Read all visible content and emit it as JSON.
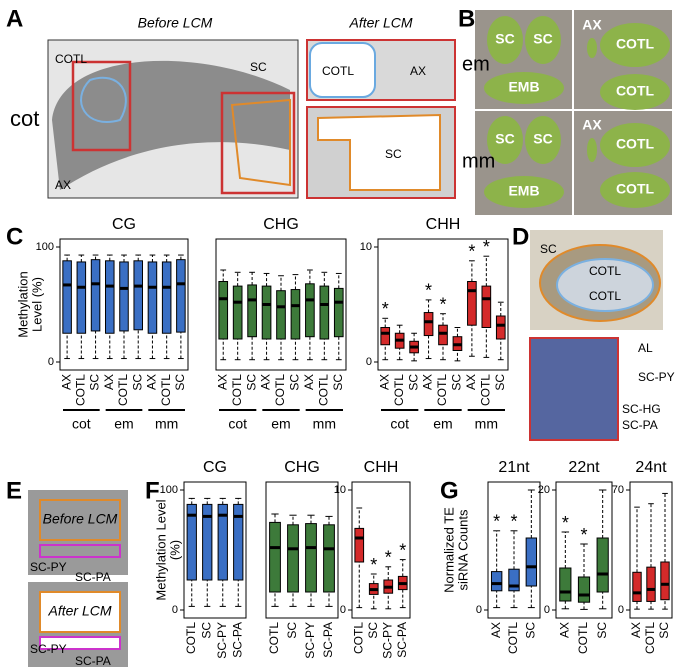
{
  "panel_letters": [
    "A",
    "B",
    "C",
    "D",
    "E",
    "F",
    "G"
  ],
  "panel_a": {
    "before_title": "Before LCM",
    "after_title": "After LCM",
    "row_label": "cot",
    "labels": [
      "COTL",
      "AX",
      "SC",
      "COTL",
      "AX",
      "SC"
    ]
  },
  "panel_b": {
    "rows": [
      "em",
      "mm"
    ],
    "labels": [
      "SC",
      "SC",
      "AX",
      "COTL",
      "EMB",
      "COTL",
      "SC",
      "SC",
      "AX",
      "COTL",
      "EMB",
      "COTL"
    ]
  },
  "panel_d": {
    "labels": [
      "SC",
      "COTL",
      "COTL",
      "AL",
      "SC-PY",
      "SC-HG",
      "SC-PA"
    ]
  },
  "panel_e": {
    "titles": [
      "Before LCM",
      "After LCM"
    ],
    "labels": [
      "SC-PY",
      "SC-PA",
      "SC-PY",
      "SC-PA"
    ]
  },
  "chart_data": [
    {
      "type": "box",
      "title": "CG",
      "ylabel": [
        "Methylation",
        "Level (%)"
      ],
      "color": "#3a6fc4",
      "categories": [
        "AX",
        "COTL",
        "SC",
        "AX",
        "COTL",
        "SC",
        "AX",
        "COTL",
        "SC"
      ],
      "groups": [
        "cot",
        "em",
        "mm"
      ],
      "ylim": [
        0,
        100
      ],
      "yticks": [
        0,
        100
      ],
      "whisker_low": [
        3,
        3,
        3,
        3,
        3,
        3,
        3,
        3,
        3
      ],
      "q1": [
        25,
        25,
        27,
        25,
        27,
        28,
        25,
        25,
        26
      ],
      "median": [
        67,
        65,
        68,
        66,
        64,
        66,
        65,
        65,
        68
      ],
      "q3": [
        88,
        87,
        89,
        88,
        87,
        88,
        87,
        87,
        89
      ],
      "whisker_high": [
        93,
        93,
        93,
        93,
        93,
        93,
        93,
        93,
        93
      ],
      "significance": [
        null,
        null,
        null,
        null,
        null,
        null,
        null,
        null,
        null
      ]
    },
    {
      "type": "box",
      "title": "CHG",
      "color": "#3d7a3a",
      "categories": [
        "AX",
        "COTL",
        "SC",
        "AX",
        "COTL",
        "SC",
        "AX",
        "COTL",
        "SC"
      ],
      "groups": [
        "cot",
        "em",
        "mm"
      ],
      "ylim": [
        0,
        100
      ],
      "whisker_low": [
        2,
        2,
        2,
        2,
        2,
        2,
        2,
        2,
        2
      ],
      "q1": [
        20,
        20,
        22,
        20,
        20,
        20,
        22,
        20,
        22
      ],
      "median": [
        55,
        52,
        54,
        50,
        48,
        49,
        54,
        50,
        52
      ],
      "q3": [
        70,
        66,
        67,
        66,
        62,
        63,
        68,
        66,
        64
      ],
      "whisker_high": [
        80,
        78,
        78,
        77,
        75,
        76,
        80,
        78,
        77
      ],
      "significance": [
        null,
        null,
        null,
        null,
        null,
        null,
        null,
        null,
        null
      ]
    },
    {
      "type": "box",
      "title": "CHH",
      "color": "#d42a2a",
      "categories": [
        "AX",
        "COTL",
        "SC",
        "AX",
        "COTL",
        "SC",
        "AX",
        "COTL",
        "SC"
      ],
      "groups": [
        "cot",
        "em",
        "mm"
      ],
      "ylim": [
        0,
        10
      ],
      "yticks": [
        0,
        10
      ],
      "whisker_low": [
        0.2,
        0.2,
        0.1,
        0.3,
        0.2,
        0.1,
        0.5,
        0.4,
        0.2
      ],
      "q1": [
        1.5,
        1.2,
        0.8,
        2.3,
        1.5,
        1.0,
        3.2,
        3.0,
        2.0
      ],
      "median": [
        2.5,
        1.9,
        1.3,
        3.5,
        2.5,
        1.5,
        6.2,
        5.5,
        3.2
      ],
      "q3": [
        3.0,
        2.5,
        1.8,
        4.3,
        3.2,
        2.2,
        7.0,
        6.6,
        4.0
      ],
      "whisker_high": [
        3.8,
        3.2,
        2.5,
        5.4,
        4.2,
        3.0,
        8.8,
        9.2,
        5.2
      ],
      "significance": [
        "*",
        null,
        null,
        "*",
        "*",
        null,
        "*",
        "*",
        null
      ]
    },
    {
      "type": "box",
      "title": "CG",
      "ylabel": [
        "Methylation Level",
        "(%)"
      ],
      "color": "#3a6fc4",
      "categories": [
        "COTL",
        "SC",
        "SC-PY",
        "SC-PA"
      ],
      "ylim": [
        0,
        100
      ],
      "yticks": [
        0,
        100
      ],
      "whisker_low": [
        3,
        3,
        3,
        3
      ],
      "q1": [
        25,
        25,
        25,
        25
      ],
      "median": [
        79,
        78,
        79,
        78
      ],
      "q3": [
        88,
        88,
        88,
        88
      ],
      "whisker_high": [
        93,
        93,
        93,
        93
      ],
      "significance": [
        null,
        null,
        null,
        null
      ]
    },
    {
      "type": "box",
      "title": "CHG",
      "color": "#3d7a3a",
      "categories": [
        "COTL",
        "SC",
        "SC-PY",
        "SC-PA"
      ],
      "ylim": [
        0,
        100
      ],
      "whisker_low": [
        3,
        3,
        3,
        3
      ],
      "q1": [
        15,
        15,
        15,
        15
      ],
      "median": [
        52,
        51,
        52,
        51
      ],
      "q3": [
        73,
        71,
        72,
        71
      ],
      "whisker_high": [
        80,
        79,
        79,
        78
      ],
      "significance": [
        null,
        null,
        null,
        null
      ]
    },
    {
      "type": "box",
      "title": "CHH",
      "color": "#d42a2a",
      "categories": [
        "COTL",
        "SC",
        "SC-PY",
        "SC-PA"
      ],
      "ylim": [
        0,
        10
      ],
      "yticks": [
        0,
        10
      ],
      "whisker_low": [
        0.2,
        0.1,
        0.1,
        0.2
      ],
      "q1": [
        4.0,
        1.3,
        1.4,
        1.7
      ],
      "median": [
        6.0,
        1.7,
        1.9,
        2.2
      ],
      "q3": [
        6.8,
        2.2,
        2.5,
        2.8
      ],
      "whisker_high": [
        8.5,
        3.0,
        3.6,
        4.2
      ],
      "significance": [
        null,
        "*",
        "*",
        "*"
      ]
    },
    {
      "type": "box",
      "title": "21nt",
      "ylabel": [
        "Normalized TE",
        "siRNA Counts"
      ],
      "color": "#3a6fc4",
      "categories": [
        "AX",
        "COTL",
        "SC"
      ],
      "ylim": [
        0,
        5
      ],
      "yticks": [
        0
      ],
      "whisker_low": [
        0.1,
        0.1,
        0.1
      ],
      "q1": [
        0.8,
        0.8,
        1.0
      ],
      "median": [
        1.1,
        1.0,
        1.8
      ],
      "q3": [
        1.6,
        1.7,
        3.0
      ],
      "whisker_high": [
        3.3,
        3.3,
        5.0
      ],
      "significance": [
        "*",
        "*",
        null
      ]
    },
    {
      "type": "box",
      "title": "22nt",
      "color": "#3d7a3a",
      "categories": [
        "AX",
        "COTL",
        "SC"
      ],
      "ylim": [
        0,
        20
      ],
      "yticks": [
        0,
        20
      ],
      "whisker_low": [
        0.2,
        0.1,
        0.2
      ],
      "q1": [
        1.5,
        1.3,
        3
      ],
      "median": [
        3,
        2.5,
        6
      ],
      "q3": [
        7,
        5.5,
        12
      ],
      "whisker_high": [
        13,
        11,
        20
      ],
      "significance": [
        "*",
        "*",
        null
      ]
    },
    {
      "type": "box",
      "title": "24nt",
      "color": "#d42a2a",
      "categories": [
        "AX",
        "COTL",
        "SC"
      ],
      "ylim": [
        0,
        70
      ],
      "yticks": [
        0,
        70
      ],
      "whisker_low": [
        0.5,
        0.5,
        0.5
      ],
      "q1": [
        5,
        5,
        6
      ],
      "median": [
        10,
        12,
        15
      ],
      "q3": [
        22,
        25,
        28
      ],
      "whisker_high": [
        60,
        62,
        68
      ],
      "significance": [
        null,
        null,
        null
      ]
    }
  ]
}
